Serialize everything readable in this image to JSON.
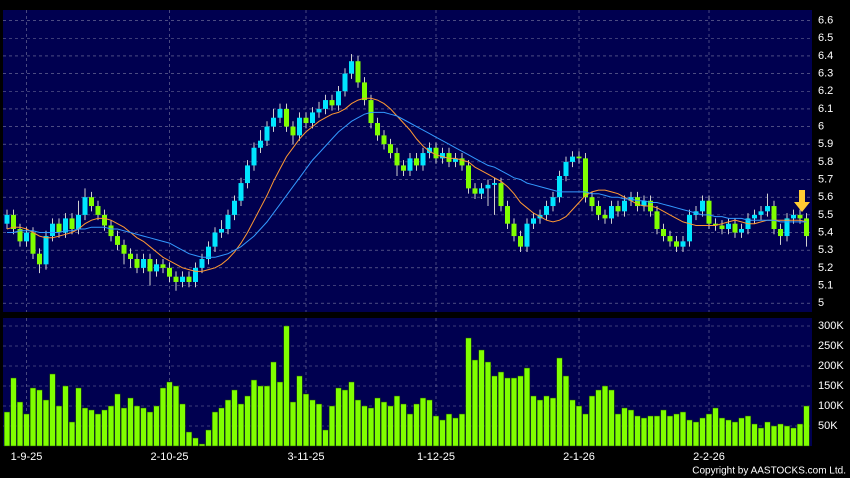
{
  "chart_data": {
    "type": "candlestick",
    "categories": [
      null,
      null,
      null,
      "1-9-25",
      null,
      null,
      null,
      null,
      null,
      null,
      null,
      null,
      null,
      null,
      null,
      null,
      null,
      null,
      null,
      null,
      null,
      null,
      null,
      null,
      null,
      "2-10-25",
      null,
      null,
      null,
      null,
      null,
      null,
      null,
      null,
      null,
      null,
      null,
      null,
      null,
      null,
      null,
      null,
      null,
      null,
      null,
      null,
      "3-11-25",
      null,
      null,
      null,
      null,
      null,
      null,
      null,
      null,
      null,
      null,
      null,
      null,
      null,
      null,
      null,
      null,
      null,
      null,
      null,
      "1-12-25",
      null,
      null,
      null,
      null,
      null,
      null,
      null,
      null,
      null,
      null,
      null,
      null,
      null,
      null,
      null,
      null,
      null,
      null,
      null,
      null,
      null,
      "2-1-26",
      null,
      null,
      null,
      null,
      null,
      null,
      null,
      null,
      null,
      null,
      null,
      null,
      null,
      null,
      null,
      null,
      null,
      null,
      null,
      "2-2-26",
      null,
      null,
      null,
      null,
      null,
      null,
      null,
      null,
      null,
      null,
      null,
      null,
      null,
      null,
      null
    ],
    "open": [
      5.45,
      5.5,
      5.42,
      5.35,
      5.4,
      5.28,
      5.22,
      5.38,
      5.45,
      5.4,
      5.48,
      5.42,
      5.5,
      5.6,
      5.55,
      5.5,
      5.44,
      5.38,
      5.33,
      5.28,
      5.25,
      5.2,
      5.25,
      5.18,
      5.22,
      5.2,
      5.15,
      5.12,
      5.15,
      5.12,
      5.2,
      5.25,
      5.32,
      5.4,
      5.42,
      5.5,
      5.58,
      5.68,
      5.78,
      5.88,
      5.92,
      6.0,
      6.05,
      6.1,
      6.0,
      5.95,
      6.05,
      6.02,
      6.08,
      6.1,
      6.15,
      6.12,
      6.2,
      6.3,
      6.37,
      6.25,
      6.15,
      6.02,
      5.95,
      5.9,
      5.85,
      5.78,
      5.75,
      5.82,
      5.78,
      5.85,
      5.88,
      5.82,
      5.85,
      5.8,
      5.82,
      5.78,
      5.65,
      5.62,
      5.65,
      5.67,
      5.68,
      5.55,
      5.45,
      5.38,
      5.32,
      5.45,
      5.48,
      5.5,
      5.55,
      5.6,
      5.72,
      5.8,
      5.83,
      5.82,
      5.6,
      5.55,
      5.5,
      5.48,
      5.55,
      5.52,
      5.58,
      5.6,
      5.55,
      5.58,
      5.52,
      5.42,
      5.38,
      5.35,
      5.32,
      5.35,
      5.5,
      5.52,
      5.58,
      5.45,
      5.44,
      5.42,
      5.45,
      5.4,
      5.42,
      5.48,
      5.5,
      5.52,
      5.55,
      5.42,
      5.38,
      5.48,
      5.5,
      5.48
    ],
    "high": [
      5.53,
      5.53,
      5.45,
      5.43,
      5.43,
      5.31,
      5.41,
      5.48,
      5.48,
      5.51,
      5.51,
      5.58,
      5.65,
      5.63,
      5.58,
      5.53,
      5.47,
      5.41,
      5.36,
      5.31,
      5.28,
      5.28,
      5.28,
      5.25,
      5.25,
      5.23,
      5.18,
      5.18,
      5.18,
      5.23,
      5.28,
      5.35,
      5.43,
      5.47,
      5.53,
      5.61,
      5.71,
      5.81,
      5.91,
      5.98,
      6.03,
      6.1,
      6.13,
      6.13,
      6.03,
      6.08,
      6.08,
      6.11,
      6.14,
      6.18,
      6.18,
      6.23,
      6.33,
      6.41,
      6.4,
      6.28,
      6.18,
      6.05,
      5.98,
      5.93,
      5.88,
      5.81,
      5.85,
      5.85,
      5.88,
      5.91,
      5.91,
      5.88,
      5.88,
      5.85,
      5.85,
      5.81,
      5.68,
      5.68,
      5.7,
      5.71,
      5.71,
      5.58,
      5.48,
      5.41,
      5.48,
      5.51,
      5.53,
      5.58,
      5.63,
      5.75,
      5.83,
      5.86,
      5.86,
      5.85,
      5.63,
      5.58,
      5.53,
      5.58,
      5.58,
      5.61,
      5.63,
      5.63,
      5.61,
      5.61,
      5.55,
      5.45,
      5.41,
      5.38,
      5.38,
      5.53,
      5.55,
      5.61,
      5.61,
      5.48,
      5.47,
      5.48,
      5.48,
      5.45,
      5.51,
      5.53,
      5.55,
      5.62,
      5.58,
      5.45,
      5.51,
      5.53,
      5.53,
      5.51
    ],
    "low": [
      5.42,
      5.39,
      5.32,
      5.32,
      5.25,
      5.17,
      5.19,
      5.35,
      5.37,
      5.37,
      5.39,
      5.39,
      5.47,
      5.52,
      5.47,
      5.41,
      5.35,
      5.3,
      5.22,
      5.2,
      5.17,
      5.17,
      5.1,
      5.15,
      5.17,
      5.12,
      5.07,
      5.09,
      5.09,
      5.09,
      5.17,
      5.22,
      5.29,
      5.37,
      5.39,
      5.47,
      5.55,
      5.65,
      5.75,
      5.85,
      5.89,
      5.97,
      6.02,
      5.97,
      5.9,
      5.92,
      5.99,
      5.99,
      6.05,
      6.07,
      6.09,
      6.09,
      6.17,
      6.27,
      6.22,
      6.12,
      5.99,
      5.92,
      5.87,
      5.82,
      5.72,
      5.72,
      5.72,
      5.75,
      5.75,
      5.82,
      5.79,
      5.79,
      5.77,
      5.77,
      5.75,
      5.62,
      5.59,
      5.59,
      5.55,
      5.5,
      5.52,
      5.42,
      5.35,
      5.29,
      5.29,
      5.42,
      5.45,
      5.47,
      5.52,
      5.57,
      5.69,
      5.77,
      5.79,
      5.57,
      5.52,
      5.47,
      5.45,
      5.45,
      5.49,
      5.49,
      5.55,
      5.52,
      5.52,
      5.49,
      5.39,
      5.35,
      5.32,
      5.29,
      5.29,
      5.32,
      5.47,
      5.49,
      5.42,
      5.41,
      5.39,
      5.39,
      5.37,
      5.37,
      5.39,
      5.45,
      5.47,
      5.49,
      5.39,
      5.33,
      5.35,
      5.45,
      5.45,
      5.32
    ],
    "close": [
      5.5,
      5.42,
      5.35,
      5.4,
      5.28,
      5.22,
      5.38,
      5.45,
      5.4,
      5.48,
      5.42,
      5.5,
      5.6,
      5.55,
      5.5,
      5.44,
      5.38,
      5.33,
      5.28,
      5.25,
      5.2,
      5.25,
      5.18,
      5.22,
      5.2,
      5.15,
      5.12,
      5.15,
      5.12,
      5.2,
      5.25,
      5.32,
      5.4,
      5.42,
      5.5,
      5.58,
      5.68,
      5.78,
      5.88,
      5.92,
      6.0,
      6.05,
      6.1,
      6.0,
      5.95,
      6.05,
      6.02,
      6.08,
      6.1,
      6.15,
      6.12,
      6.2,
      6.3,
      6.37,
      6.25,
      6.15,
      6.02,
      5.95,
      5.9,
      5.85,
      5.78,
      5.75,
      5.82,
      5.78,
      5.85,
      5.88,
      5.82,
      5.85,
      5.8,
      5.82,
      5.78,
      5.65,
      5.62,
      5.65,
      5.67,
      5.68,
      5.55,
      5.45,
      5.38,
      5.32,
      5.45,
      5.48,
      5.5,
      5.55,
      5.6,
      5.72,
      5.8,
      5.83,
      5.82,
      5.6,
      5.55,
      5.5,
      5.48,
      5.55,
      5.52,
      5.58,
      5.6,
      5.55,
      5.58,
      5.52,
      5.42,
      5.38,
      5.35,
      5.32,
      5.35,
      5.5,
      5.52,
      5.58,
      5.45,
      5.44,
      5.42,
      5.45,
      5.4,
      5.42,
      5.48,
      5.5,
      5.52,
      5.55,
      5.42,
      5.38,
      5.48,
      5.5,
      5.48,
      5.38
    ],
    "up_color": "#00e5ff",
    "down_color": "#80ff00",
    "ylim": [
      4.95,
      6.66
    ],
    "yticks": [
      5,
      5.1,
      5.2,
      5.3,
      5.4,
      5.5,
      5.6,
      5.7,
      5.8,
      5.9,
      6,
      6.1,
      6.2,
      6.3,
      6.4,
      6.5,
      6.6
    ],
    "grid": true,
    "lines": [
      {
        "color": "#ff9933",
        "values": [
          5.42,
          5.43,
          5.43,
          5.42,
          5.4,
          5.38,
          5.37,
          5.37,
          5.38,
          5.39,
          5.4,
          5.42,
          5.45,
          5.47,
          5.48,
          5.48,
          5.47,
          5.45,
          5.43,
          5.4,
          5.37,
          5.35,
          5.32,
          5.29,
          5.26,
          5.24,
          5.22,
          5.2,
          5.19,
          5.18,
          5.18,
          5.19,
          5.2,
          5.22,
          5.25,
          5.29,
          5.34,
          5.4,
          5.47,
          5.54,
          5.61,
          5.69,
          5.76,
          5.83,
          5.88,
          5.93,
          5.97,
          6.0,
          6.03,
          6.05,
          6.07,
          6.08,
          6.1,
          6.13,
          6.15,
          6.16,
          6.16,
          6.15,
          6.13,
          6.1,
          6.06,
          6.02,
          5.98,
          5.93,
          5.89,
          5.86,
          5.84,
          5.83,
          5.82,
          5.82,
          5.81,
          5.8,
          5.77,
          5.75,
          5.73,
          5.71,
          5.69,
          5.66,
          5.62,
          5.57,
          5.54,
          5.51,
          5.49,
          5.47,
          5.46,
          5.47,
          5.49,
          5.53,
          5.57,
          5.61,
          5.63,
          5.64,
          5.64,
          5.63,
          5.62,
          5.6,
          5.58,
          5.56,
          5.55,
          5.55,
          5.54,
          5.52,
          5.5,
          5.48,
          5.46,
          5.45,
          5.44,
          5.44,
          5.44,
          5.44,
          5.45,
          5.46,
          5.47,
          5.46,
          5.45,
          5.45,
          5.46,
          5.47,
          5.47,
          5.47,
          5.47,
          5.47,
          5.47,
          5.46
        ]
      },
      {
        "color": "#3399ff",
        "values": [
          5.4,
          5.4,
          5.41,
          5.41,
          5.41,
          5.4,
          5.4,
          5.4,
          5.4,
          5.41,
          5.41,
          5.42,
          5.42,
          5.43,
          5.43,
          5.43,
          5.42,
          5.42,
          5.41,
          5.4,
          5.39,
          5.38,
          5.37,
          5.36,
          5.35,
          5.34,
          5.32,
          5.3,
          5.28,
          5.27,
          5.26,
          5.26,
          5.26,
          5.27,
          5.28,
          5.3,
          5.32,
          5.35,
          5.38,
          5.42,
          5.46,
          5.51,
          5.56,
          5.61,
          5.66,
          5.71,
          5.76,
          5.81,
          5.85,
          5.89,
          5.93,
          5.97,
          6.0,
          6.03,
          6.05,
          6.07,
          6.08,
          6.08,
          6.08,
          6.07,
          6.06,
          6.04,
          6.02,
          6.0,
          5.98,
          5.96,
          5.94,
          5.92,
          5.9,
          5.88,
          5.86,
          5.84,
          5.82,
          5.8,
          5.78,
          5.77,
          5.75,
          5.73,
          5.71,
          5.7,
          5.68,
          5.67,
          5.66,
          5.65,
          5.64,
          5.63,
          5.63,
          5.63,
          5.63,
          5.63,
          5.62,
          5.62,
          5.61,
          5.6,
          5.6,
          5.59,
          5.59,
          5.58,
          5.58,
          5.57,
          5.57,
          5.56,
          5.55,
          5.54,
          5.53,
          5.52,
          5.51,
          5.5,
          5.5,
          5.49,
          5.49,
          5.48,
          5.48,
          5.48,
          5.47,
          5.47,
          5.47,
          5.47,
          5.47,
          5.46,
          5.46,
          5.46,
          5.46,
          5.46
        ]
      }
    ],
    "volume": {
      "color": "#80ff00",
      "ylim": [
        0,
        320000
      ],
      "yticks": [
        {
          "value": 50000,
          "label": "50K"
        },
        {
          "value": 100000,
          "label": "100K"
        },
        {
          "value": 150000,
          "label": "150K"
        },
        {
          "value": 200000,
          "label": "200K"
        },
        {
          "value": 250000,
          "label": "250K"
        },
        {
          "value": 300000,
          "label": "300K"
        }
      ],
      "values": [
        85000,
        170000,
        110000,
        80000,
        145000,
        140000,
        115000,
        180000,
        100000,
        150000,
        60000,
        145000,
        95000,
        90000,
        80000,
        90000,
        100000,
        130000,
        95000,
        120000,
        100000,
        95000,
        85000,
        100000,
        145000,
        160000,
        150000,
        105000,
        35000,
        20000,
        5000,
        40000,
        85000,
        95000,
        115000,
        140000,
        105000,
        125000,
        165000,
        150000,
        150000,
        210000,
        160000,
        300000,
        110000,
        175000,
        130000,
        115000,
        105000,
        40000,
        100000,
        145000,
        140000,
        160000,
        115000,
        100000,
        95000,
        120000,
        110000,
        100000,
        125000,
        105000,
        80000,
        105000,
        120000,
        115000,
        75000,
        65000,
        80000,
        70000,
        80000,
        270000,
        215000,
        240000,
        210000,
        175000,
        185000,
        170000,
        170000,
        175000,
        195000,
        125000,
        115000,
        125000,
        120000,
        220000,
        175000,
        115000,
        100000,
        80000,
        125000,
        140000,
        150000,
        140000,
        80000,
        95000,
        90000,
        75000,
        70000,
        75000,
        75000,
        90000,
        75000,
        80000,
        85000,
        65000,
        60000,
        70000,
        80000,
        95000,
        70000,
        65000,
        60000,
        70000,
        75000,
        55000,
        45000,
        60000,
        50000,
        55000,
        50000,
        45000,
        55000,
        100000
      ]
    },
    "copyright": "Copyright by AASTOCKS.com Ltd."
  }
}
